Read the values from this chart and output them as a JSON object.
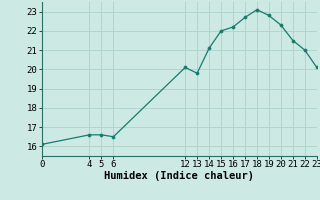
{
  "x": [
    0,
    4,
    5,
    6,
    12,
    13,
    14,
    15,
    16,
    17,
    18,
    19,
    20,
    21,
    22,
    23
  ],
  "y": [
    16.1,
    16.6,
    16.6,
    16.5,
    20.1,
    19.8,
    21.1,
    22.0,
    22.2,
    22.7,
    23.1,
    22.8,
    22.3,
    21.5,
    21.0,
    20.1
  ],
  "xlim": [
    0,
    23
  ],
  "ylim": [
    15.5,
    23.5
  ],
  "xticks": [
    0,
    4,
    5,
    6,
    12,
    13,
    14,
    15,
    16,
    17,
    18,
    19,
    20,
    21,
    22,
    23
  ],
  "yticks": [
    16,
    17,
    18,
    19,
    20,
    21,
    22,
    23
  ],
  "xlabel": "Humidex (Indice chaleur)",
  "line_color": "#1a7a6e",
  "marker_color": "#1a7a6e",
  "bg_color": "#cce9e4",
  "grid_color": "#b0d4ce",
  "tick_fontsize": 6.5,
  "label_fontsize": 7.5
}
